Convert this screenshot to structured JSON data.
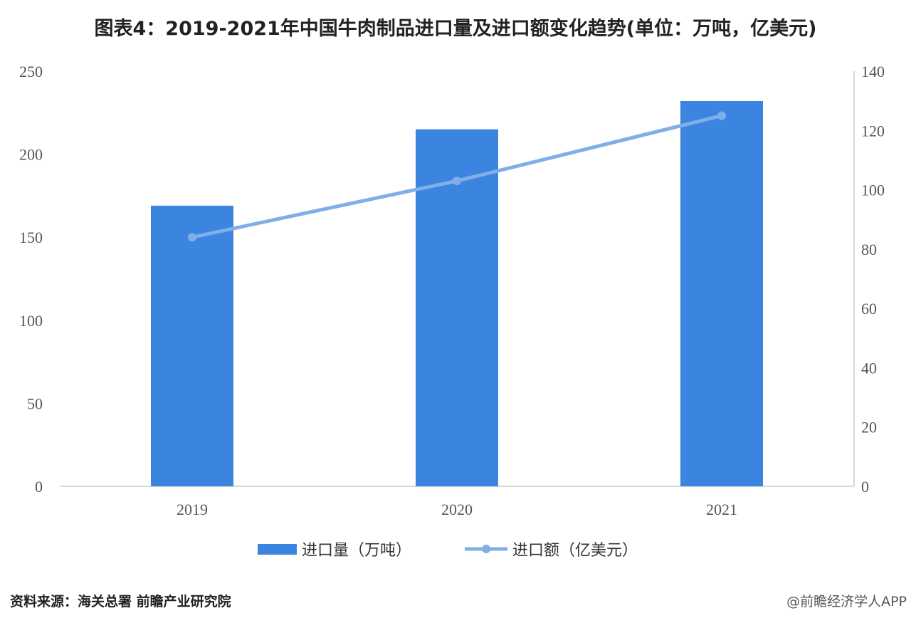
{
  "chart_data": {
    "type": "bar",
    "title": "图表4：2019-2021年中国牛肉制品进口量及进口额变化趋势(单位：万吨，亿美元)",
    "categories": [
      "2019",
      "2020",
      "2021"
    ],
    "series": [
      {
        "name": "进口量（万吨）",
        "type": "bar",
        "axis": "left",
        "values": [
          169,
          215,
          232
        ],
        "color": "#3B84E0"
      },
      {
        "name": "进口额（亿美元）",
        "type": "line",
        "axis": "right",
        "values": [
          84,
          103,
          125
        ],
        "color": "#7FAFE6"
      }
    ],
    "y_left": {
      "min": 0,
      "max": 250,
      "ticks": [
        "0",
        "50",
        "100",
        "150",
        "200",
        "250"
      ]
    },
    "y_right": {
      "min": 0,
      "max": 140,
      "ticks": [
        "0",
        "20",
        "40",
        "60",
        "80",
        "100",
        "120",
        "140"
      ]
    },
    "grid": false,
    "legend_position": "bottom"
  },
  "footer": {
    "source": "资料来源：海关总署 前瞻产业研究院",
    "watermark": "@前瞻经济学人APP"
  }
}
